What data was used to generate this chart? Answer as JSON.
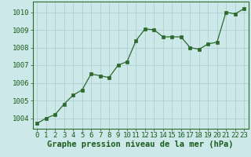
{
  "x": [
    0,
    1,
    2,
    3,
    4,
    5,
    6,
    7,
    8,
    9,
    10,
    11,
    12,
    13,
    14,
    15,
    16,
    17,
    18,
    19,
    20,
    21,
    22,
    23
  ],
  "y": [
    1003.7,
    1004.0,
    1004.2,
    1004.8,
    1005.3,
    1005.6,
    1006.5,
    1006.4,
    1006.3,
    1007.0,
    1007.2,
    1008.4,
    1009.05,
    1009.0,
    1008.6,
    1008.6,
    1008.6,
    1008.0,
    1007.9,
    1008.2,
    1008.3,
    1010.0,
    1009.9,
    1010.2
  ],
  "line_color": "#2d6a2d",
  "marker_color": "#2d6a2d",
  "bg_color": "#cce8e8",
  "grid_color": "#aacccc",
  "xlabel": "Graphe pression niveau de la mer (hPa)",
  "xlim": [
    -0.5,
    23.5
  ],
  "ylim": [
    1003.4,
    1010.6
  ],
  "yticks": [
    1004,
    1005,
    1006,
    1007,
    1008,
    1009,
    1010
  ],
  "xticks": [
    0,
    1,
    2,
    3,
    4,
    5,
    6,
    7,
    8,
    9,
    10,
    11,
    12,
    13,
    14,
    15,
    16,
    17,
    18,
    19,
    20,
    21,
    22,
    23
  ],
  "tick_color": "#1a5c1a",
  "label_fontsize": 6.5,
  "xlabel_fontsize": 7.5,
  "spine_color": "#2d6a2d"
}
